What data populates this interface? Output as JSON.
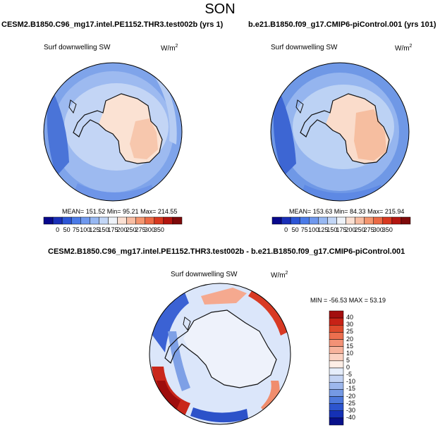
{
  "page_title": "SON",
  "panels": [
    {
      "case_title": "CESM2.B1850.C96_mg17.intel.PE1152.THR3.test002b (yrs 1)",
      "variable": "Surf downwelling SW",
      "units_base": "W/m",
      "units_exp": "2",
      "stats": "MEAN= 151.52  Min=  95.21  Max= 214.55"
    },
    {
      "case_title": "b.e21.B1850.f09_g17.CMIP6-piControl.001 (yrs 101)",
      "variable": "Surf downwelling SW",
      "units_base": "W/m",
      "units_exp": "2",
      "stats": "MEAN= 153.63  Min=  84.33  Max= 215.94"
    },
    {
      "case_title": "CESM2.B1850.C96_mg17.intel.PE1152.THR3.test002b - b.e21.B1850.f09_g17.CMIP6-piControl.001",
      "variable": "Surf downwelling SW",
      "units_base": "W/m",
      "units_exp": "2",
      "stats": "MIN = -56.53 MAX =  53.19"
    }
  ],
  "field_colorbar": {
    "labels": [
      "0",
      "50",
      "75",
      "100",
      "125",
      "150",
      "175",
      "200",
      "250",
      "275",
      "300",
      "350"
    ],
    "colors": [
      "#08088c",
      "#1a2fb8",
      "#2c55d6",
      "#4a7ae8",
      "#6f98ee",
      "#97b8f2",
      "#c2d6f6",
      "#eef2f8",
      "#fbe0d2",
      "#f8bda2",
      "#f4966f",
      "#ec6a45",
      "#d8381f",
      "#b3150f",
      "#7e0a0a"
    ]
  },
  "diff_colorbar": {
    "labels": [
      "40",
      "30",
      "25",
      "20",
      "15",
      "10",
      "5",
      "0",
      "-5",
      "-10",
      "-15",
      "-20",
      "-25",
      "-30",
      "-40"
    ],
    "colors": [
      "#a30e0e",
      "#c72216",
      "#de4a2c",
      "#ec6f4f",
      "#f39276",
      "#f7b39c",
      "#fbd2c2",
      "#fdeee6",
      "#e6eefb",
      "#c3d3f3",
      "#9db7ec",
      "#7599e4",
      "#4d78dc",
      "#2d55cf",
      "#1531b5",
      "#08108a"
    ]
  },
  "colors": {
    "coast": "#111111",
    "land_ice_top": "#fcdcca",
    "ocean_low": "#5f86e0"
  },
  "map_features": [
    "antarctica-coastline",
    "polar-stereographic-disk"
  ]
}
